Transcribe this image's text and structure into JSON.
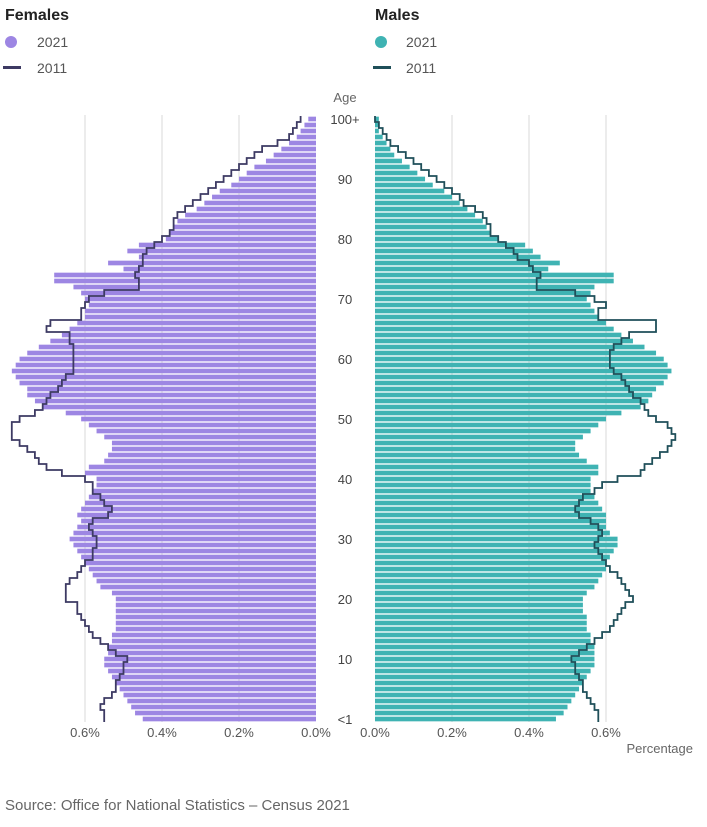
{
  "legend": {
    "females": {
      "title": "Females",
      "items": [
        "2021",
        "2011"
      ]
    },
    "males": {
      "title": "Males",
      "items": [
        "2021",
        "2011"
      ]
    }
  },
  "colors": {
    "female_bar": "#9d86e3",
    "female_line": "#3d3a63",
    "male_bar": "#3fb3b3",
    "male_line": "#1f4f59",
    "grid": "#d9d9d9"
  },
  "source": "Source: Office for National Statistics – Census 2021",
  "chart_data": {
    "type": "bar",
    "orientation": "horizontal-population-pyramid",
    "categories_label": "Age",
    "x_caption": "Percentage",
    "age_tick_labels": [
      "<1",
      "10",
      "20",
      "30",
      "40",
      "50",
      "60",
      "70",
      "80",
      "90",
      "100+"
    ],
    "x_tick_labels_females": [
      "0.6%",
      "0.4%",
      "0.2%",
      "0.0%"
    ],
    "x_tick_labels_males": [
      "0.0%",
      "0.2%",
      "0.4%",
      "0.6%"
    ],
    "xlim": [
      0,
      0.8
    ],
    "ages": [
      "<1",
      "1",
      "2",
      "3",
      "4",
      "5",
      "6",
      "7",
      "8",
      "9",
      "10",
      "11",
      "12",
      "13",
      "14",
      "15",
      "16",
      "17",
      "18",
      "19",
      "20",
      "21",
      "22",
      "23",
      "24",
      "25",
      "26",
      "27",
      "28",
      "29",
      "30",
      "31",
      "32",
      "33",
      "34",
      "35",
      "36",
      "37",
      "38",
      "39",
      "40",
      "41",
      "42",
      "43",
      "44",
      "45",
      "46",
      "47",
      "48",
      "49",
      "50",
      "51",
      "52",
      "53",
      "54",
      "55",
      "56",
      "57",
      "58",
      "59",
      "60",
      "61",
      "62",
      "63",
      "64",
      "65",
      "66",
      "67",
      "68",
      "69",
      "70",
      "71",
      "72",
      "73",
      "74",
      "75",
      "76",
      "77",
      "78",
      "79",
      "80",
      "81",
      "82",
      "83",
      "84",
      "85",
      "86",
      "87",
      "88",
      "89",
      "90",
      "91",
      "92",
      "93",
      "94",
      "95",
      "96",
      "97",
      "98",
      "99",
      "100+"
    ],
    "series": [
      {
        "name": "2021",
        "side": "Females",
        "values": [
          0.45,
          0.47,
          0.48,
          0.49,
          0.5,
          0.51,
          0.52,
          0.53,
          0.54,
          0.55,
          0.55,
          0.54,
          0.54,
          0.53,
          0.53,
          0.52,
          0.52,
          0.52,
          0.52,
          0.52,
          0.52,
          0.53,
          0.56,
          0.57,
          0.58,
          0.59,
          0.6,
          0.61,
          0.62,
          0.63,
          0.64,
          0.63,
          0.62,
          0.61,
          0.62,
          0.61,
          0.6,
          0.59,
          0.58,
          0.57,
          0.57,
          0.6,
          0.59,
          0.55,
          0.54,
          0.53,
          0.53,
          0.55,
          0.57,
          0.59,
          0.61,
          0.65,
          0.71,
          0.73,
          0.75,
          0.75,
          0.77,
          0.78,
          0.79,
          0.78,
          0.77,
          0.75,
          0.72,
          0.69,
          0.66,
          0.64,
          0.62,
          0.6,
          0.6,
          0.59,
          0.6,
          0.61,
          0.63,
          0.68,
          0.68,
          0.5,
          0.54,
          0.46,
          0.49,
          0.46,
          0.39,
          0.38,
          0.37,
          0.36,
          0.34,
          0.31,
          0.29,
          0.27,
          0.25,
          0.22,
          0.2,
          0.18,
          0.16,
          0.13,
          0.11,
          0.09,
          0.07,
          0.05,
          0.04,
          0.03,
          0.02
        ]
      },
      {
        "name": "2011",
        "side": "Females",
        "values": [
          0.55,
          0.55,
          0.56,
          0.55,
          0.53,
          0.52,
          0.52,
          0.51,
          0.5,
          0.5,
          0.49,
          0.52,
          0.54,
          0.56,
          0.58,
          0.59,
          0.6,
          0.61,
          0.62,
          0.62,
          0.65,
          0.65,
          0.65,
          0.64,
          0.62,
          0.61,
          0.6,
          0.58,
          0.58,
          0.57,
          0.57,
          0.58,
          0.59,
          0.58,
          0.54,
          0.53,
          0.55,
          0.56,
          0.58,
          0.58,
          0.6,
          0.66,
          0.7,
          0.72,
          0.73,
          0.75,
          0.77,
          0.79,
          0.79,
          0.79,
          0.77,
          0.73,
          0.71,
          0.7,
          0.69,
          0.67,
          0.66,
          0.65,
          0.63,
          0.63,
          0.63,
          0.63,
          0.63,
          0.64,
          0.64,
          0.7,
          0.69,
          0.61,
          0.61,
          0.6,
          0.59,
          0.55,
          0.46,
          0.46,
          0.47,
          0.46,
          0.45,
          0.45,
          0.44,
          0.42,
          0.4,
          0.38,
          0.37,
          0.37,
          0.36,
          0.34,
          0.32,
          0.3,
          0.28,
          0.26,
          0.24,
          0.22,
          0.2,
          0.18,
          0.16,
          0.14,
          0.1,
          0.07,
          0.06,
          0.05,
          0.04
        ]
      },
      {
        "name": "2021",
        "side": "Males",
        "values": [
          0.47,
          0.49,
          0.5,
          0.51,
          0.52,
          0.53,
          0.54,
          0.55,
          0.56,
          0.57,
          0.57,
          0.57,
          0.57,
          0.56,
          0.56,
          0.55,
          0.55,
          0.55,
          0.54,
          0.54,
          0.54,
          0.55,
          0.57,
          0.58,
          0.59,
          0.6,
          0.6,
          0.61,
          0.62,
          0.63,
          0.63,
          0.61,
          0.6,
          0.6,
          0.6,
          0.59,
          0.58,
          0.57,
          0.56,
          0.56,
          0.56,
          0.58,
          0.58,
          0.55,
          0.53,
          0.52,
          0.52,
          0.54,
          0.56,
          0.58,
          0.6,
          0.64,
          0.69,
          0.71,
          0.72,
          0.73,
          0.75,
          0.76,
          0.77,
          0.76,
          0.75,
          0.73,
          0.7,
          0.67,
          0.64,
          0.62,
          0.6,
          0.58,
          0.57,
          0.56,
          0.55,
          0.56,
          0.57,
          0.62,
          0.62,
          0.45,
          0.48,
          0.43,
          0.41,
          0.39,
          0.32,
          0.3,
          0.29,
          0.28,
          0.26,
          0.24,
          0.22,
          0.2,
          0.18,
          0.15,
          0.13,
          0.11,
          0.09,
          0.07,
          0.05,
          0.04,
          0.03,
          0.02,
          0.01,
          0.01,
          0.01
        ]
      },
      {
        "name": "2011",
        "side": "Males",
        "values": [
          0.58,
          0.58,
          0.57,
          0.56,
          0.55,
          0.54,
          0.54,
          0.53,
          0.52,
          0.52,
          0.51,
          0.53,
          0.55,
          0.57,
          0.59,
          0.61,
          0.62,
          0.63,
          0.64,
          0.65,
          0.67,
          0.66,
          0.65,
          0.64,
          0.63,
          0.61,
          0.6,
          0.59,
          0.58,
          0.57,
          0.58,
          0.59,
          0.58,
          0.56,
          0.53,
          0.52,
          0.53,
          0.54,
          0.57,
          0.59,
          0.63,
          0.69,
          0.7,
          0.72,
          0.74,
          0.76,
          0.77,
          0.78,
          0.77,
          0.76,
          0.73,
          0.71,
          0.7,
          0.69,
          0.67,
          0.66,
          0.65,
          0.64,
          0.62,
          0.61,
          0.61,
          0.61,
          0.62,
          0.64,
          0.66,
          0.73,
          0.73,
          0.58,
          0.58,
          0.6,
          0.57,
          0.52,
          0.42,
          0.42,
          0.43,
          0.41,
          0.4,
          0.37,
          0.36,
          0.34,
          0.32,
          0.3,
          0.3,
          0.29,
          0.28,
          0.26,
          0.23,
          0.22,
          0.2,
          0.18,
          0.16,
          0.14,
          0.12,
          0.1,
          0.08,
          0.06,
          0.04,
          0.03,
          0.02,
          0.01,
          0.0
        ]
      }
    ]
  }
}
